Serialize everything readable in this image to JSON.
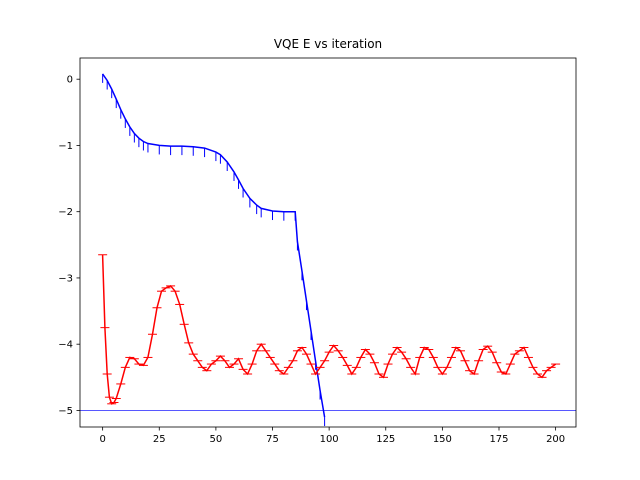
{
  "chart_data": {
    "type": "line",
    "title": "VQE E vs iteration",
    "xlabel": "",
    "ylabel": "",
    "xlim": [
      -10,
      209
    ],
    "ylim": [
      -5.25,
      0.32
    ],
    "xticks": [
      0,
      25,
      50,
      75,
      100,
      125,
      150,
      175,
      200
    ],
    "yticks": [
      0,
      -1,
      -2,
      -3,
      -4,
      -5
    ],
    "ytick_labels": [
      "0",
      "−1",
      "−2",
      "−3",
      "−4",
      "−5"
    ],
    "grid": false,
    "legend": "none",
    "reference_line": {
      "y": -5.0,
      "color": "#3f3fff"
    },
    "series": [
      {
        "color": "#0000ff",
        "style": "line with downward error ticks",
        "x": [
          0,
          2,
          4,
          6,
          8,
          10,
          12,
          14,
          16,
          18,
          20,
          25,
          30,
          35,
          40,
          45,
          50,
          52,
          55,
          58,
          60,
          62,
          65,
          68,
          70,
          75,
          80,
          85,
          86,
          88,
          90,
          92,
          94,
          96,
          98
        ],
        "y": [
          0.08,
          -0.02,
          -0.15,
          -0.3,
          -0.46,
          -0.6,
          -0.72,
          -0.82,
          -0.89,
          -0.94,
          -0.97,
          -1.0,
          -1.01,
          -1.01,
          -1.02,
          -1.04,
          -1.1,
          -1.14,
          -1.25,
          -1.4,
          -1.52,
          -1.65,
          -1.8,
          -1.9,
          -1.95,
          -1.99,
          -2.0,
          -2.0,
          -2.45,
          -2.9,
          -3.35,
          -3.8,
          -4.25,
          -4.7,
          -5.1
        ]
      },
      {
        "color": "#ff0000",
        "style": "line with horizontal step markers",
        "x": [
          0,
          1,
          2,
          3,
          4,
          5,
          6,
          8,
          10,
          12,
          14,
          16,
          18,
          20,
          22,
          24,
          26,
          28,
          30,
          32,
          34,
          36,
          38,
          40,
          42,
          44,
          46,
          48,
          50,
          52,
          54,
          56,
          58,
          60,
          62,
          64,
          66,
          68,
          70,
          72,
          74,
          76,
          78,
          80,
          82,
          84,
          86,
          88,
          90,
          92,
          94,
          96,
          98,
          100,
          102,
          104,
          106,
          108,
          110,
          112,
          114,
          116,
          118,
          120,
          122,
          124,
          126,
          128,
          130,
          132,
          134,
          136,
          138,
          140,
          142,
          144,
          146,
          148,
          150,
          152,
          154,
          156,
          158,
          160,
          162,
          164,
          166,
          168,
          170,
          172,
          174,
          176,
          178,
          180,
          182,
          184,
          186,
          188,
          190,
          192,
          194,
          196,
          198,
          200
        ],
        "y": [
          -2.65,
          -3.75,
          -4.45,
          -4.8,
          -4.9,
          -4.88,
          -4.82,
          -4.6,
          -4.35,
          -4.2,
          -4.22,
          -4.3,
          -4.32,
          -4.2,
          -3.85,
          -3.45,
          -3.2,
          -3.15,
          -3.12,
          -3.2,
          -3.4,
          -3.7,
          -3.98,
          -4.15,
          -4.25,
          -4.35,
          -4.4,
          -4.3,
          -4.25,
          -4.18,
          -4.25,
          -4.35,
          -4.3,
          -4.22,
          -4.38,
          -4.45,
          -4.3,
          -4.1,
          -4.0,
          -4.1,
          -4.2,
          -4.3,
          -4.4,
          -4.45,
          -4.35,
          -4.25,
          -4.1,
          -4.05,
          -4.15,
          -4.3,
          -4.45,
          -4.35,
          -4.25,
          -4.12,
          -4.02,
          -4.1,
          -4.2,
          -4.32,
          -4.45,
          -4.35,
          -4.2,
          -4.08,
          -4.15,
          -4.28,
          -4.45,
          -4.5,
          -4.3,
          -4.15,
          -4.05,
          -4.12,
          -4.22,
          -4.35,
          -4.45,
          -4.2,
          -4.05,
          -4.08,
          -4.2,
          -4.35,
          -4.45,
          -4.35,
          -4.2,
          -4.05,
          -4.1,
          -4.25,
          -4.4,
          -4.45,
          -4.25,
          -4.08,
          -4.03,
          -4.12,
          -4.28,
          -4.42,
          -4.45,
          -4.3,
          -4.15,
          -4.1,
          -4.05,
          -4.2,
          -4.35,
          -4.45,
          -4.5,
          -4.4,
          -4.35,
          -4.3
        ]
      }
    ]
  }
}
